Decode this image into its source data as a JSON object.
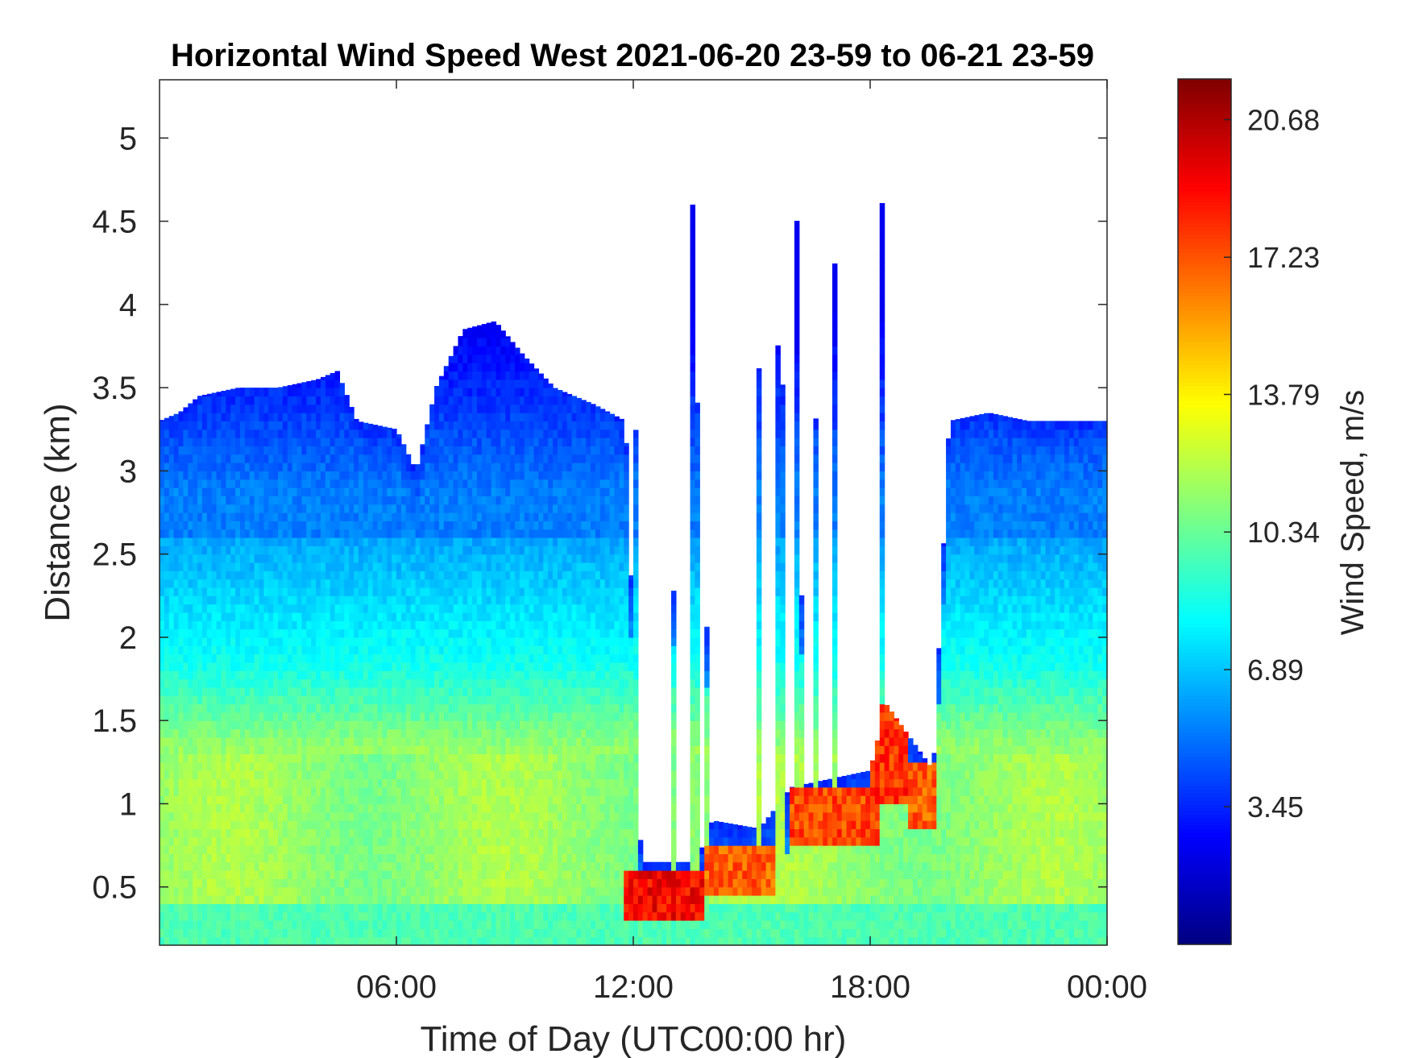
{
  "chart_data": {
    "type": "heatmap",
    "title": "Horizontal Wind Speed West 2021-06-20 23-59 to 06-21 23-59",
    "xlabel": "Time of Day (UTC00:00 hr)",
    "ylabel": "Distance (km)",
    "colorbar_label": "Wind Speed, m/s",
    "xlim_hours": [
      0,
      24
    ],
    "ylim_km": [
      0.15,
      5.35
    ],
    "x_ticks": [
      {
        "hour": 6,
        "label": "06:00"
      },
      {
        "hour": 12,
        "label": "12:00"
      },
      {
        "hour": 18,
        "label": "18:00"
      },
      {
        "hour": 24,
        "label": "00:00"
      }
    ],
    "y_ticks": [
      {
        "value": 0.5,
        "label": "0.5"
      },
      {
        "value": 1,
        "label": "1"
      },
      {
        "value": 1.5,
        "label": "1.5"
      },
      {
        "value": 2,
        "label": "2"
      },
      {
        "value": 2.5,
        "label": "2.5"
      },
      {
        "value": 3,
        "label": "3"
      },
      {
        "value": 3.5,
        "label": "3.5"
      },
      {
        "value": 4,
        "label": "4"
      },
      {
        "value": 4.5,
        "label": "4.5"
      },
      {
        "value": 5,
        "label": "5"
      }
    ],
    "colorbar_range": [
      0,
      21.7
    ],
    "colorbar_ticks": [
      {
        "value": 3.45,
        "label": "3.45"
      },
      {
        "value": 6.89,
        "label": "6.89"
      },
      {
        "value": 10.34,
        "label": "10.34"
      },
      {
        "value": 13.79,
        "label": "13.79"
      },
      {
        "value": 17.23,
        "label": "17.23"
      },
      {
        "value": 20.68,
        "label": "20.68"
      }
    ],
    "colormap": "jet",
    "data_top_km_by_hour": [
      {
        "hour": 0.0,
        "top_km": 3.3
      },
      {
        "hour": 0.5,
        "top_km": 3.35
      },
      {
        "hour": 1.0,
        "top_km": 3.45
      },
      {
        "hour": 2.0,
        "top_km": 3.5
      },
      {
        "hour": 3.0,
        "top_km": 3.5
      },
      {
        "hour": 4.0,
        "top_km": 3.55
      },
      {
        "hour": 4.5,
        "top_km": 3.6
      },
      {
        "hour": 5.0,
        "top_km": 3.3
      },
      {
        "hour": 6.0,
        "top_km": 3.25
      },
      {
        "hour": 6.5,
        "top_km": 3.0
      },
      {
        "hour": 7.0,
        "top_km": 3.5
      },
      {
        "hour": 7.7,
        "top_km": 3.85
      },
      {
        "hour": 8.5,
        "top_km": 3.9
      },
      {
        "hour": 9.2,
        "top_km": 3.7
      },
      {
        "hour": 10.0,
        "top_km": 3.5
      },
      {
        "hour": 11.0,
        "top_km": 3.4
      },
      {
        "hour": 11.8,
        "top_km": 3.3
      },
      {
        "hour": 12.2,
        "top_km": 0.65
      },
      {
        "hour": 13.6,
        "top_km": 0.65
      },
      {
        "hour": 14.0,
        "top_km": 0.9
      },
      {
        "hour": 15.2,
        "top_km": 0.85
      },
      {
        "hour": 16.0,
        "top_km": 1.1
      },
      {
        "hour": 17.0,
        "top_km": 1.15
      },
      {
        "hour": 18.0,
        "top_km": 1.2
      },
      {
        "hour": 18.4,
        "top_km": 1.6
      },
      {
        "hour": 19.0,
        "top_km": 1.4
      },
      {
        "hour": 19.6,
        "top_km": 1.2
      },
      {
        "hour": 20.0,
        "top_km": 3.3
      },
      {
        "hour": 21.0,
        "top_km": 3.35
      },
      {
        "hour": 22.0,
        "top_km": 3.3
      },
      {
        "hour": 23.0,
        "top_km": 3.3
      },
      {
        "hour": 24.0,
        "top_km": 3.3
      }
    ],
    "high_wind_bands": [
      {
        "hour_start": 11.8,
        "hour_end": 13.8,
        "km_start": 0.3,
        "km_end": 0.6,
        "speed": 19
      },
      {
        "hour_start": 13.8,
        "hour_end": 15.6,
        "km_start": 0.45,
        "km_end": 0.75,
        "speed": 17
      },
      {
        "hour_start": 16.0,
        "hour_end": 18.2,
        "km_start": 0.75,
        "km_end": 1.1,
        "speed": 17.5
      },
      {
        "hour_start": 18.0,
        "hour_end": 18.9,
        "km_start": 1.0,
        "km_end": 1.6,
        "speed": 18
      },
      {
        "hour_start": 19.0,
        "hour_end": 19.7,
        "km_start": 0.85,
        "km_end": 1.25,
        "speed": 17
      }
    ]
  }
}
